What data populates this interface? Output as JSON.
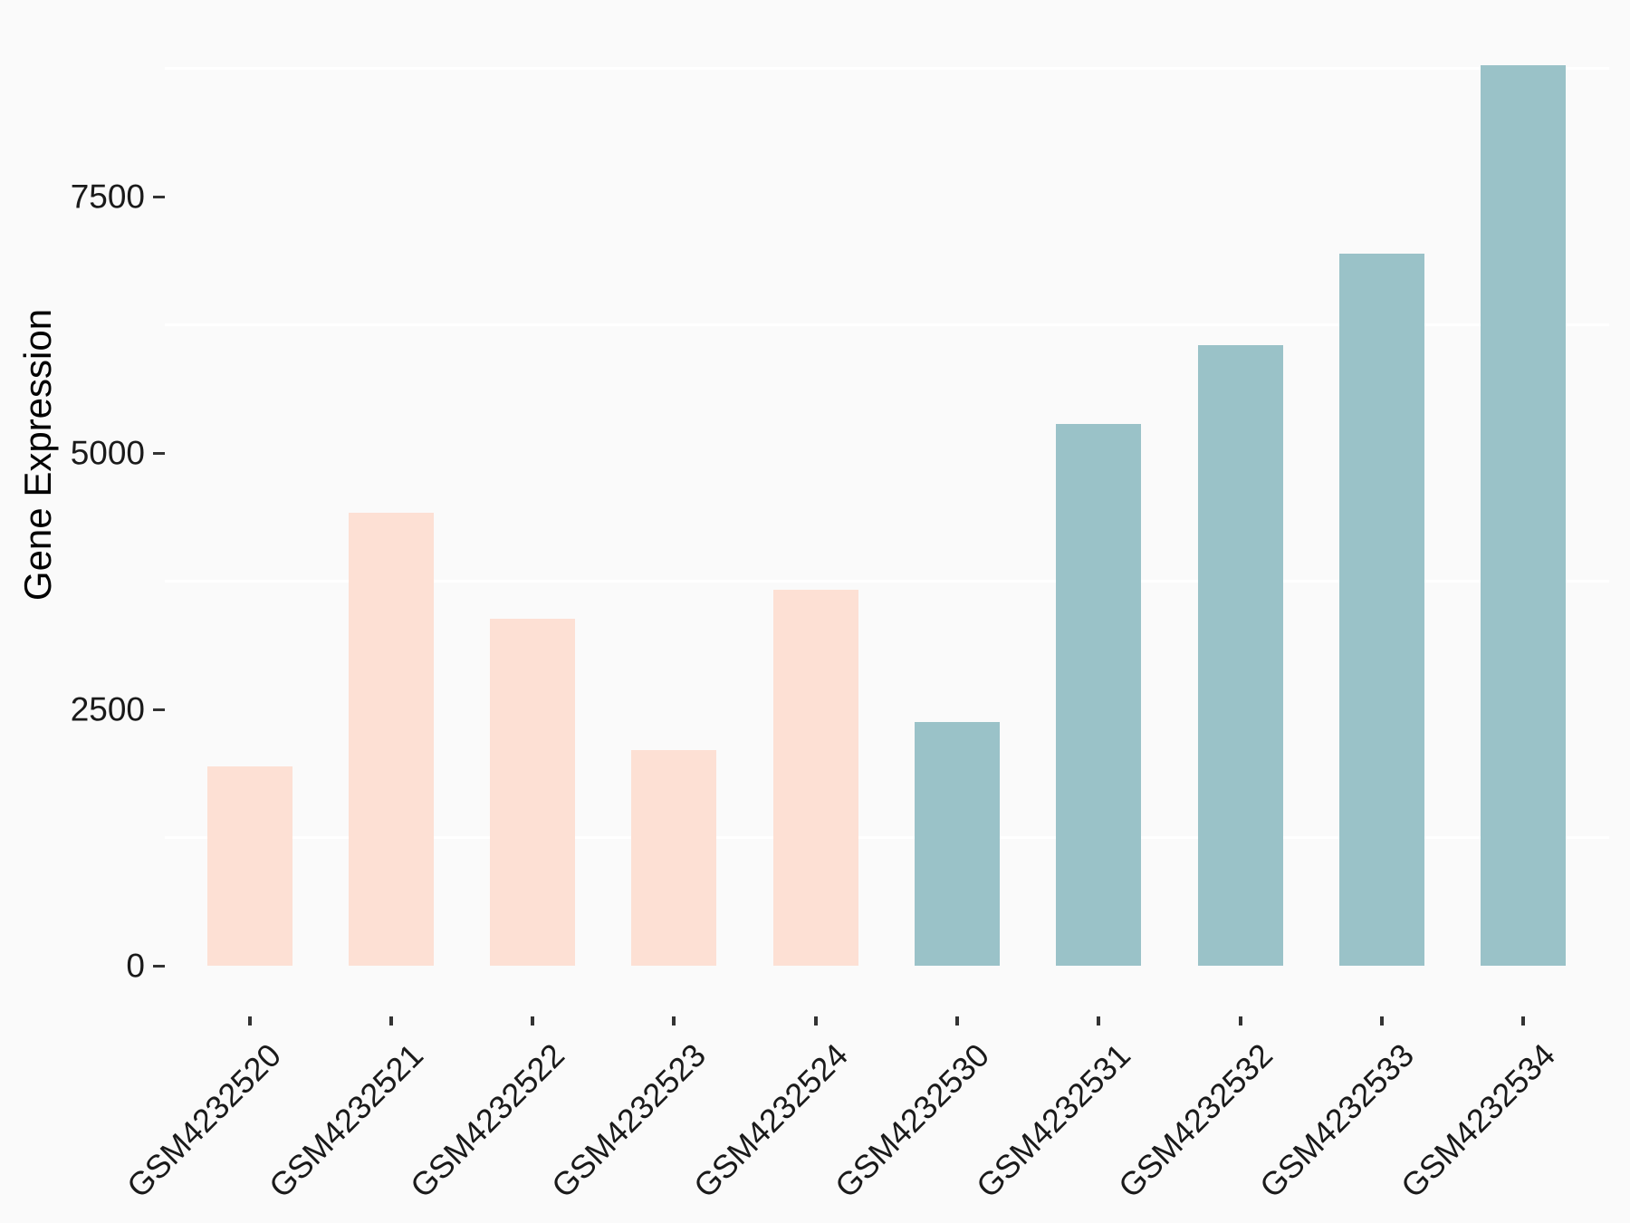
{
  "chart_data": {
    "type": "bar",
    "title": "",
    "xlabel": "",
    "ylabel": "Gene Expression",
    "categories": [
      "GSM4232520",
      "GSM4232521",
      "GSM4232522",
      "GSM4232523",
      "GSM4232524",
      "GSM4232530",
      "GSM4232531",
      "GSM4232532",
      "GSM4232533",
      "GSM4232534"
    ],
    "values": [
      1940,
      4420,
      3380,
      2100,
      3670,
      2380,
      5280,
      6050,
      6940,
      8780
    ],
    "bar_colors": [
      "#FDE0D4",
      "#FDE0D4",
      "#FDE0D4",
      "#FDE0D4",
      "#FDE0D4",
      "#9AC2C8",
      "#9AC2C8",
      "#9AC2C8",
      "#9AC2C8",
      "#9AC2C8"
    ],
    "yticks": [
      0,
      2500,
      5000,
      7500
    ],
    "minor_gridlines": [
      1250,
      3750,
      6250,
      8750
    ],
    "ylim": [
      0,
      9220
    ],
    "grid": "white minor gridlines on light gray panel",
    "legend_position": "none"
  },
  "style": {
    "background_color": "#FAFAFA",
    "gridline_color": "#FFFFFF",
    "tick_color": "#333333",
    "text_color": "#1A1A1A"
  }
}
